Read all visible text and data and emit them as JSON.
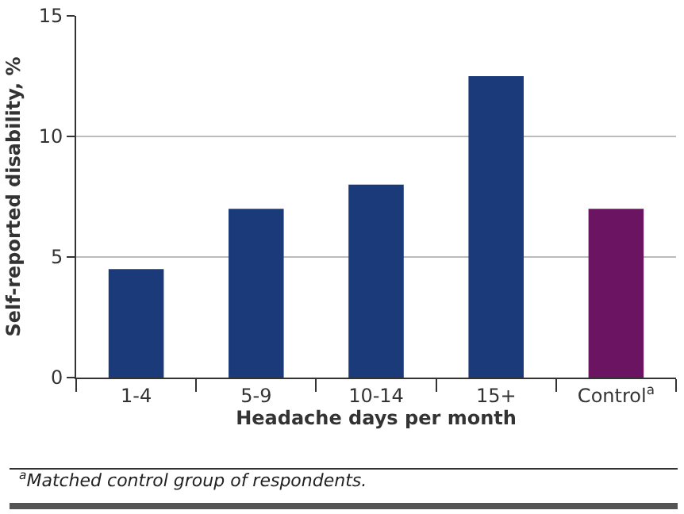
{
  "chart_data": {
    "type": "bar",
    "xlabel": "Headache days per month",
    "ylabel": "Self-reported disability, %",
    "categories": [
      "1-4",
      "5-9",
      "10-14",
      "15+",
      "Control$^{a}$"
    ],
    "values": [
      4.5,
      7,
      8,
      12.5,
      7
    ],
    "colors": [
      "#1b3a7a",
      "#1b3a7a",
      "#1b3a7a",
      "#1b3a7a",
      "#6b1462"
    ],
    "ylim": [
      0,
      15
    ],
    "yticks": [
      0,
      5,
      10,
      15
    ],
    "grid": "y",
    "annotations": [
      "$^{a}$Matched control group of respondents."
    ]
  }
}
